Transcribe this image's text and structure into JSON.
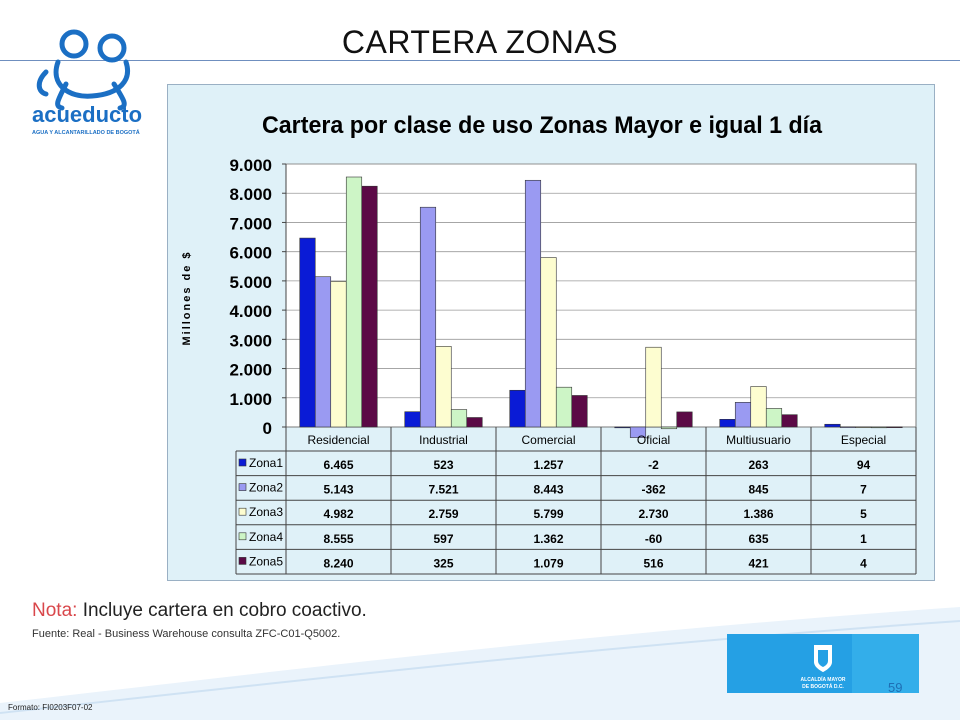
{
  "slide": {
    "title": "CARTERA ZONAS",
    "note_label": "Nota:",
    "note_text": " Incluye cartera en cobro coactivo.",
    "source": "Fuente: Real - Business Warehouse  consulta ZFC-C01-Q5002.",
    "footer_code": "Formato: FI0203F07-02",
    "page_number": "59"
  },
  "logo": {
    "name": "acueducto",
    "tagline": "AGUA Y ALCANTARILLADO DE BOGOTÁ"
  },
  "alcaldia": {
    "line1": "ALCALDÍA MAYOR",
    "line2": "DE BOGOTÁ D.C."
  },
  "chart_data": {
    "type": "bar",
    "title": "Cartera por clase de uso Zonas Mayor e igual 1 día",
    "ylabel": "Millones de $",
    "xlabel": "",
    "ylim": [
      0,
      9000
    ],
    "yticks": [
      0,
      1000,
      2000,
      3000,
      4000,
      5000,
      6000,
      7000,
      8000,
      9000
    ],
    "ytick_labels": [
      "0",
      "1.000",
      "2.000",
      "3.000",
      "4.000",
      "5.000",
      "6.000",
      "7.000",
      "8.000",
      "9.000"
    ],
    "grid": true,
    "legend": "data-table",
    "categories": [
      "Residencial",
      "Industrial",
      "Comercial",
      "Oficial",
      "Multiusuario",
      "Especial"
    ],
    "series": [
      {
        "name": "Zona1",
        "color": "#0a1bd6",
        "values": [
          6465,
          523,
          1257,
          -2,
          263,
          94
        ],
        "labels": [
          "6.465",
          "523",
          "1.257",
          "-2",
          "263",
          "94"
        ]
      },
      {
        "name": "Zona2",
        "color": "#9a9af2",
        "values": [
          5143,
          7521,
          8443,
          -362,
          845,
          7
        ],
        "labels": [
          "5.143",
          "7.521",
          "8.443",
          "-362",
          "845",
          "7"
        ]
      },
      {
        "name": "Zona3",
        "color": "#fdfdd0",
        "values": [
          4982,
          2759,
          5799,
          2730,
          1386,
          5
        ],
        "labels": [
          "4.982",
          "2.759",
          "5.799",
          "2.730",
          "1.386",
          "5"
        ]
      },
      {
        "name": "Zona4",
        "color": "#cdf5c6",
        "values": [
          8555,
          597,
          1362,
          -60,
          635,
          1
        ],
        "labels": [
          "8.555",
          "597",
          "1.362",
          "-60",
          "635",
          "1"
        ]
      },
      {
        "name": "Zona5",
        "color": "#5b0a46",
        "values": [
          8240,
          325,
          1079,
          516,
          421,
          4
        ],
        "labels": [
          "8.240",
          "325",
          "1.079",
          "516",
          "421",
          "4"
        ]
      }
    ]
  }
}
